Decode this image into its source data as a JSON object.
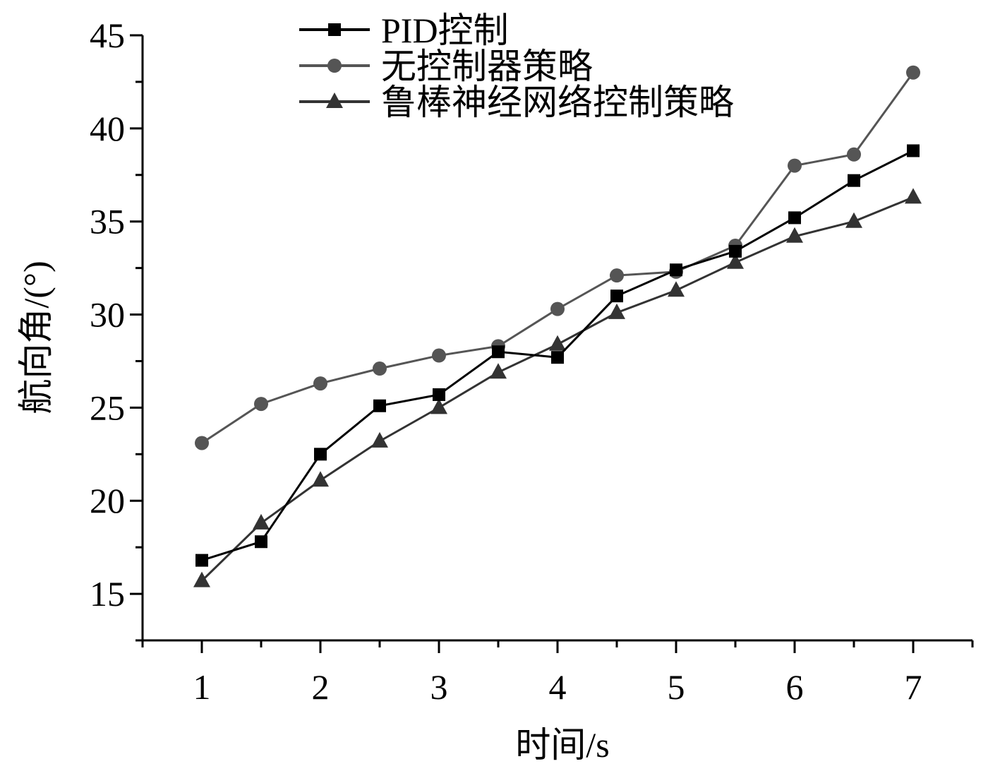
{
  "chart_data": {
    "type": "line",
    "xlabel": "时间/s",
    "ylabel": "航向角/(°)",
    "xlim": [
      0.5,
      7.5
    ],
    "ylim": [
      12.5,
      45
    ],
    "xticks": [
      1,
      2,
      3,
      4,
      5,
      6,
      7
    ],
    "yticks": [
      15,
      20,
      25,
      30,
      35,
      40,
      45
    ],
    "grid": false,
    "legend_position": "top",
    "x": [
      1,
      1.5,
      2,
      2.5,
      3,
      3.5,
      4,
      4.5,
      5,
      5.5,
      6,
      6.5,
      7
    ],
    "series": [
      {
        "name": "PID控制",
        "marker": "square",
        "color": "#000000",
        "values": [
          16.8,
          17.8,
          22.5,
          25.1,
          25.7,
          28.0,
          27.7,
          31.0,
          32.4,
          33.4,
          35.2,
          37.2,
          38.8
        ]
      },
      {
        "name": "无控制器策略",
        "marker": "circle",
        "color": "#555555",
        "values": [
          23.1,
          25.2,
          26.3,
          27.1,
          27.8,
          28.3,
          30.3,
          32.1,
          32.3,
          33.7,
          38.0,
          38.6,
          43.0
        ]
      },
      {
        "name": "鲁棒神经网络控制策略",
        "marker": "triangle",
        "color": "#333333",
        "values": [
          15.7,
          18.8,
          21.1,
          23.2,
          25.0,
          26.9,
          28.4,
          30.1,
          31.3,
          32.8,
          34.2,
          35.0,
          36.3
        ]
      }
    ]
  }
}
